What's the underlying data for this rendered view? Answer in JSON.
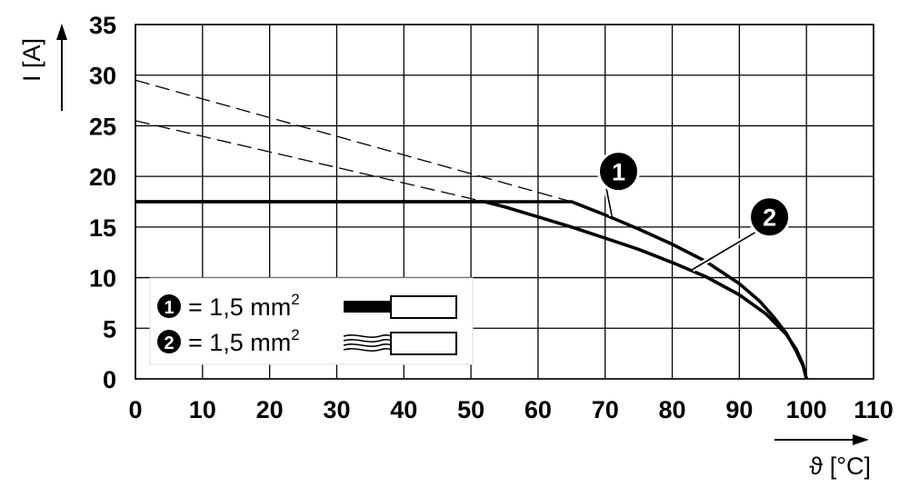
{
  "chart_data": {
    "type": "line",
    "xlabel": "ϑ [°C]",
    "ylabel": "I [A]",
    "xlim": [
      0,
      110
    ],
    "ylim": [
      0,
      35
    ],
    "x_ticks": [
      "0",
      "10",
      "20",
      "30",
      "40",
      "50",
      "60",
      "70",
      "80",
      "90",
      "100",
      "110"
    ],
    "y_ticks": [
      "0",
      "5",
      "10",
      "15",
      "20",
      "25",
      "30",
      "35"
    ],
    "grid": true,
    "series": [
      {
        "marker": "1",
        "style": "solid",
        "points": [
          [
            0,
            17.5
          ],
          [
            65,
            17.5
          ],
          [
            70,
            16.2
          ],
          [
            75,
            14.8
          ],
          [
            80,
            13.3
          ],
          [
            85,
            11.6
          ],
          [
            90,
            9.4
          ],
          [
            93,
            7.7
          ],
          [
            95,
            6.2
          ],
          [
            97,
            4.5
          ],
          [
            98.5,
            2.7
          ],
          [
            99.5,
            1.3
          ],
          [
            100,
            0
          ]
        ]
      },
      {
        "marker": "2",
        "style": "solid",
        "points": [
          [
            0,
            17.5
          ],
          [
            52,
            17.5
          ],
          [
            55,
            17.0
          ],
          [
            60,
            16.0
          ],
          [
            65,
            15.0
          ],
          [
            70,
            13.9
          ],
          [
            75,
            12.8
          ],
          [
            80,
            11.5
          ],
          [
            85,
            10.1
          ],
          [
            90,
            8.3
          ],
          [
            94,
            6.4
          ],
          [
            97,
            4.4
          ],
          [
            98.5,
            2.9
          ],
          [
            99.5,
            1.4
          ],
          [
            100,
            0
          ]
        ]
      },
      {
        "marker": "1",
        "style": "dashed",
        "points": [
          [
            0,
            29.5
          ],
          [
            65,
            17.5
          ]
        ]
      },
      {
        "marker": "2",
        "style": "dashed",
        "points": [
          [
            0,
            25.5
          ],
          [
            52,
            17.5
          ]
        ]
      }
    ],
    "callouts": [
      {
        "label": "1",
        "at": [
          72,
          20.5
        ],
        "target": [
          71,
          16.1
        ]
      },
      {
        "label": "2",
        "at": [
          94.5,
          16.0
        ],
        "target": [
          83,
          10.8
        ]
      }
    ],
    "legend": {
      "placement": "bottom-left",
      "entries": [
        {
          "marker": "1",
          "text": "= 1,5 mm",
          "superscript": "2",
          "icon": "solid-conductor-icon"
        },
        {
          "marker": "2",
          "text": "= 1,5 mm",
          "superscript": "2",
          "icon": "stranded-conductor-icon"
        }
      ]
    }
  }
}
